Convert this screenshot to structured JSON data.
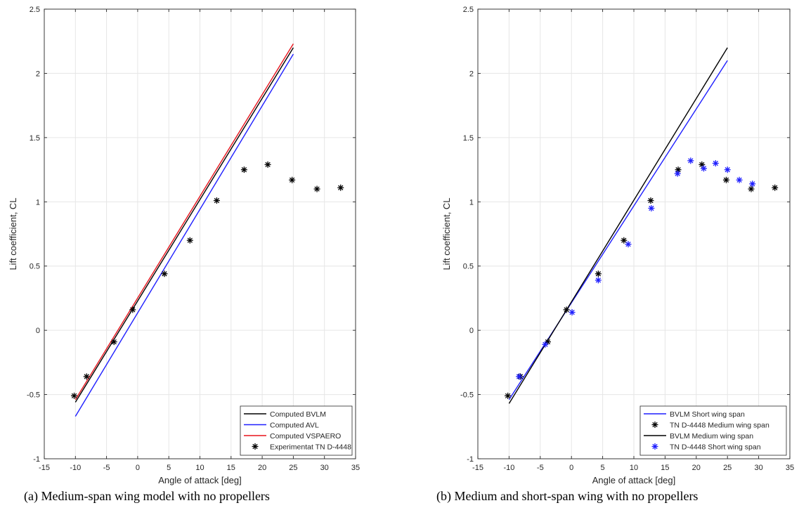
{
  "captions": {
    "a": "(a) Medium-span wing model with no propellers",
    "b": "(b) Medium and short-span wing with no propellers"
  },
  "chart_data": [
    {
      "type": "line",
      "xlabel": "Angle of attack [deg]",
      "ylabel": "Lift coefficient, CL",
      "xlim": [
        -15,
        35
      ],
      "ylim": [
        -1,
        2.5
      ],
      "xticks": [
        -15,
        -10,
        -5,
        0,
        5,
        10,
        15,
        20,
        25,
        30,
        35
      ],
      "yticks": [
        -1,
        -0.5,
        0,
        0.5,
        1,
        1.5,
        2,
        2.5
      ],
      "grid": true,
      "legend_position": "bottom-right",
      "series": [
        {
          "name": "Computed BVLM",
          "kind": "line",
          "color": "#000000",
          "x": [
            -10,
            25
          ],
          "y": [
            -0.56,
            2.2
          ]
        },
        {
          "name": "Computed AVL",
          "kind": "line",
          "color": "#1f1fff",
          "x": [
            -10,
            25
          ],
          "y": [
            -0.67,
            2.15
          ]
        },
        {
          "name": "Computed VSPAERO",
          "kind": "line",
          "color": "#e8141c",
          "x": [
            -10,
            25
          ],
          "y": [
            -0.54,
            2.23
          ]
        },
        {
          "name": "Experimentat TN D-4448",
          "kind": "marker",
          "color": "#000000",
          "x": [
            -10.2,
            -8.2,
            -3.8,
            -0.8,
            4.3,
            8.4,
            12.7,
            17.1,
            20.9,
            24.8,
            28.8,
            32.6
          ],
          "y": [
            -0.51,
            -0.36,
            -0.09,
            0.16,
            0.44,
            0.7,
            1.01,
            1.25,
            1.29,
            1.17,
            1.1,
            1.11
          ]
        }
      ]
    },
    {
      "type": "line",
      "xlabel": "Angle of attack [deg]",
      "ylabel": "Lift coefficient, CL",
      "xlim": [
        -15,
        35
      ],
      "ylim": [
        -1,
        2.5
      ],
      "xticks": [
        -15,
        -10,
        -5,
        0,
        5,
        10,
        15,
        20,
        25,
        30,
        35
      ],
      "yticks": [
        -1,
        -0.5,
        0,
        0.5,
        1,
        1.5,
        2,
        2.5
      ],
      "grid": true,
      "legend_position": "bottom-right",
      "series": [
        {
          "name": "BVLM Short wing span",
          "kind": "line",
          "color": "#1f1fff",
          "x": [
            -10,
            25
          ],
          "y": [
            -0.54,
            2.1
          ]
        },
        {
          "name": "TN D-4448 Medium wing span",
          "kind": "marker",
          "color": "#000000",
          "x": [
            -10.2,
            -8.2,
            -3.8,
            -0.8,
            4.3,
            8.4,
            12.7,
            17.1,
            20.9,
            24.8,
            28.8,
            32.6
          ],
          "y": [
            -0.51,
            -0.36,
            -0.09,
            0.16,
            0.44,
            0.7,
            1.01,
            1.25,
            1.29,
            1.17,
            1.1,
            1.11
          ]
        },
        {
          "name": "BVLM Medium wing span",
          "kind": "line",
          "color": "#000000",
          "x": [
            -10,
            25
          ],
          "y": [
            -0.57,
            2.2
          ]
        },
        {
          "name": "TN D-4448 Short wing span",
          "kind": "marker",
          "color": "#1f1fff",
          "x": [
            -8.4,
            -4.2,
            0.1,
            4.3,
            9.1,
            12.8,
            17.0,
            19.1,
            21.2,
            23.1,
            25.0,
            26.9,
            29.0
          ],
          "y": [
            -0.36,
            -0.11,
            0.14,
            0.39,
            0.67,
            0.95,
            1.22,
            1.32,
            1.26,
            1.3,
            1.25,
            1.17,
            1.14
          ]
        }
      ]
    }
  ]
}
